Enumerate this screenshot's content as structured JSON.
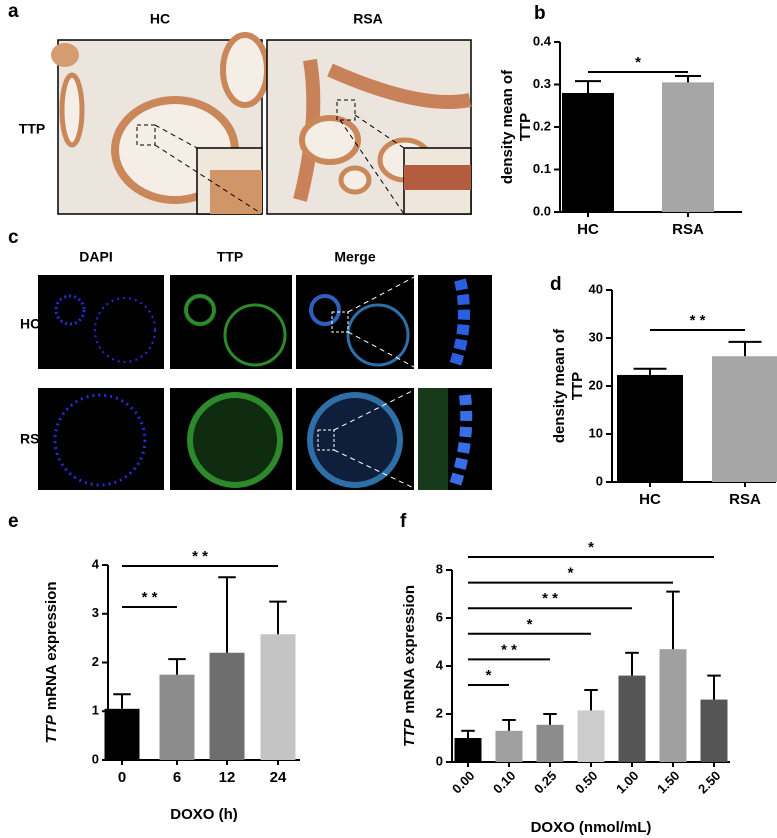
{
  "panels": {
    "a": {
      "label": "a",
      "columns": [
        "HC",
        "RSA"
      ],
      "row": "TTP"
    },
    "c": {
      "label": "c",
      "columns": [
        "DAPI",
        "TTP",
        "Merge"
      ],
      "rows": [
        "HC",
        "RSA"
      ]
    }
  },
  "chart_data": [
    {
      "type": "bar",
      "panel_label": "b",
      "ylabel": [
        "density mean of",
        "TTP"
      ],
      "categories": [
        "HC",
        "RSA"
      ],
      "values": [
        0.28,
        0.305
      ],
      "errors": [
        0.028,
        0.015
      ],
      "colors": [
        "#000000",
        "#a6a6a6"
      ],
      "ylim": [
        0,
        0.4
      ],
      "yticks": [
        {
          "value": 0,
          "label": "0.0"
        },
        0.1,
        0.2,
        0.3,
        0.4
      ],
      "significance": [
        {
          "between": [
            "HC",
            "RSA"
          ],
          "label": "*"
        }
      ]
    },
    {
      "type": "bar",
      "panel_label": "d",
      "ylabel": [
        "density mean of",
        "TTP"
      ],
      "categories": [
        "HC",
        "RSA"
      ],
      "values": [
        22.3,
        26.2
      ],
      "errors": [
        1.3,
        3.0
      ],
      "colors": [
        "#000000",
        "#a6a6a6"
      ],
      "ylim": [
        0,
        40
      ],
      "yticks": [
        0,
        10,
        20,
        30,
        40
      ],
      "significance": [
        {
          "between": [
            "HC",
            "RSA"
          ],
          "label": "* *"
        }
      ]
    },
    {
      "type": "bar",
      "panel_label": "e",
      "ylabel_runs": [
        "TTP",
        "mRNA expression"
      ],
      "xlabel": "DOXO (h)",
      "categories": [
        "0",
        "6",
        "12",
        "24"
      ],
      "values": [
        1.05,
        1.75,
        2.2,
        2.58
      ],
      "errors": [
        0.3,
        0.32,
        1.55,
        0.67
      ],
      "colors": [
        "#000000",
        "#8c8c8c",
        "#6e6e6e",
        "#c4c4c4"
      ],
      "ylim": [
        0,
        4
      ],
      "yticks": [
        0,
        1,
        2,
        3,
        4
      ],
      "significance": [
        {
          "between": [
            "0",
            "6"
          ],
          "label": "* *"
        },
        {
          "between": [
            "0",
            "24"
          ],
          "label": "* *"
        }
      ]
    },
    {
      "type": "bar",
      "panel_label": "f",
      "ylabel_runs": [
        "TTP",
        "mRNA expression"
      ],
      "xlabel": "DOXO (nmol/mL)",
      "categories": [
        "0.00",
        "0.10",
        "0.25",
        "0.50",
        "1.00",
        "1.50",
        "2.50"
      ],
      "values": [
        1.0,
        1.3,
        1.55,
        2.15,
        3.6,
        4.7,
        2.6
      ],
      "errors": [
        0.3,
        0.45,
        0.45,
        0.85,
        0.95,
        2.4,
        1.0
      ],
      "colors": [
        "#000000",
        "#a0a0a0",
        "#8c8c8c",
        "#cccccc",
        "#555555",
        "#a0a0a0",
        "#555555"
      ],
      "ylim": [
        0,
        8
      ],
      "yticks": [
        0,
        2,
        4,
        6,
        8
      ],
      "significance": [
        {
          "between": [
            "0.00",
            "0.10"
          ],
          "label": "*"
        },
        {
          "between": [
            "0.00",
            "0.25"
          ],
          "label": "* *"
        },
        {
          "between": [
            "0.00",
            "0.50"
          ],
          "label": "*"
        },
        {
          "between": [
            "0.00",
            "1.00"
          ],
          "label": "* *"
        },
        {
          "between": [
            "0.00",
            "1.50"
          ],
          "label": "*"
        },
        {
          "between": [
            "0.00",
            "2.50"
          ],
          "label": "*"
        }
      ]
    }
  ]
}
